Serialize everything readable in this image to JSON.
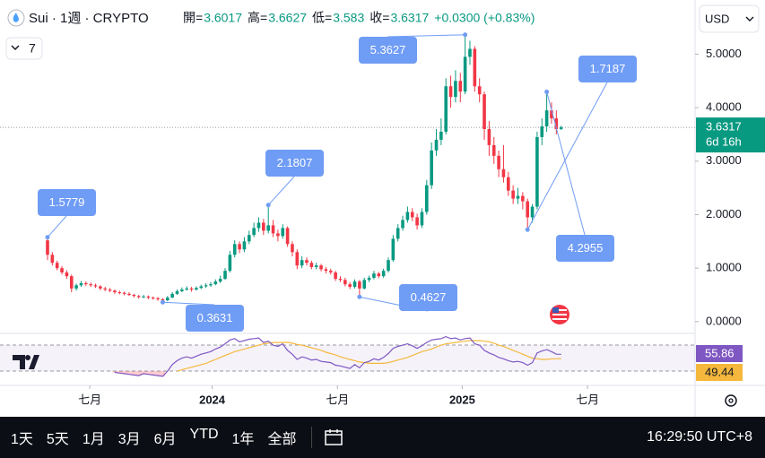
{
  "chart_data": {
    "type": "candlestick",
    "symbol": "Sui · 1週 · CRYPTO",
    "ohlc_labels": [
      "開=",
      "高=",
      "低=",
      "收="
    ],
    "change": "+0.0300 (+0.83%)",
    "indicator_count": "7",
    "currency": "USD",
    "countdown": "6d 16h",
    "up_color": "#089981",
    "down_color": "#f23645",
    "annotation_color": "#6f9cf5",
    "ylim": [
      -0.22,
      5.51
    ],
    "yticks": [
      {
        "value": 0,
        "label": "0.0000"
      },
      {
        "value": 1,
        "label": "1.0000"
      },
      {
        "value": 2,
        "label": "2.0000"
      },
      {
        "value": 3,
        "label": "3.0000"
      },
      {
        "value": 4,
        "label": "4.0000"
      },
      {
        "value": 5,
        "label": "5.0000"
      }
    ],
    "grid": false,
    "xlim": [
      -9.9,
      134.9
    ],
    "xticks": [
      {
        "value": 8.8,
        "label": "七月"
      },
      {
        "value": 34.3,
        "label": "2024"
      },
      {
        "value": 60.4,
        "label": "七月"
      },
      {
        "value": 86.4,
        "label": "2025"
      },
      {
        "value": 112.5,
        "label": "七月"
      }
    ],
    "candles": [
      [
        1.52,
        1.5779,
        1.15,
        1.25
      ],
      [
        1.25,
        1.3,
        1.05,
        1.1
      ],
      [
        1.1,
        1.14,
        0.96,
        1.0
      ],
      [
        1.0,
        1.04,
        0.88,
        0.92
      ],
      [
        0.92,
        0.96,
        0.8,
        0.85
      ],
      [
        0.85,
        0.88,
        0.55,
        0.62
      ],
      [
        0.62,
        0.71,
        0.58,
        0.68
      ],
      [
        0.68,
        0.76,
        0.65,
        0.72
      ],
      [
        0.72,
        0.75,
        0.67,
        0.7
      ],
      [
        0.7,
        0.73,
        0.65,
        0.68
      ],
      [
        0.68,
        0.71,
        0.63,
        0.66
      ],
      [
        0.66,
        0.68,
        0.59,
        0.62
      ],
      [
        0.62,
        0.65,
        0.57,
        0.6
      ],
      [
        0.6,
        0.63,
        0.55,
        0.58
      ],
      [
        0.58,
        0.6,
        0.52,
        0.55
      ],
      [
        0.55,
        0.58,
        0.51,
        0.54
      ],
      [
        0.54,
        0.56,
        0.49,
        0.52
      ],
      [
        0.52,
        0.55,
        0.48,
        0.5
      ],
      [
        0.5,
        0.52,
        0.45,
        0.48
      ],
      [
        0.48,
        0.5,
        0.43,
        0.46
      ],
      [
        0.46,
        0.5,
        0.44,
        0.47
      ],
      [
        0.47,
        0.49,
        0.42,
        0.45
      ],
      [
        0.45,
        0.47,
        0.41,
        0.44
      ],
      [
        0.44,
        0.46,
        0.39,
        0.42
      ],
      [
        0.42,
        0.44,
        0.3631,
        0.4
      ],
      [
        0.4,
        0.48,
        0.38,
        0.45
      ],
      [
        0.45,
        0.55,
        0.44,
        0.52
      ],
      [
        0.52,
        0.6,
        0.5,
        0.57
      ],
      [
        0.57,
        0.64,
        0.55,
        0.6
      ],
      [
        0.6,
        0.66,
        0.58,
        0.62
      ],
      [
        0.62,
        0.65,
        0.56,
        0.6
      ],
      [
        0.6,
        0.66,
        0.58,
        0.63
      ],
      [
        0.63,
        0.69,
        0.61,
        0.66
      ],
      [
        0.66,
        0.72,
        0.63,
        0.68
      ],
      [
        0.68,
        0.74,
        0.65,
        0.7
      ],
      [
        0.7,
        0.79,
        0.68,
        0.75
      ],
      [
        0.75,
        0.86,
        0.72,
        0.8
      ],
      [
        0.8,
        1.0,
        0.78,
        0.95
      ],
      [
        0.95,
        1.32,
        0.92,
        1.25
      ],
      [
        1.25,
        1.52,
        1.2,
        1.45
      ],
      [
        1.45,
        1.5,
        1.28,
        1.35
      ],
      [
        1.35,
        1.58,
        1.3,
        1.5
      ],
      [
        1.5,
        1.7,
        1.45,
        1.62
      ],
      [
        1.62,
        1.85,
        1.58,
        1.75
      ],
      [
        1.75,
        1.95,
        1.68,
        1.85
      ],
      [
        1.85,
        1.92,
        1.62,
        1.7
      ],
      [
        1.7,
        2.1807,
        1.65,
        1.8
      ],
      [
        1.8,
        1.9,
        1.58,
        1.65
      ],
      [
        1.65,
        1.72,
        1.5,
        1.6
      ],
      [
        1.6,
        1.82,
        1.55,
        1.75
      ],
      [
        1.75,
        1.78,
        1.4,
        1.45
      ],
      [
        1.45,
        1.5,
        1.22,
        1.3
      ],
      [
        1.3,
        1.35,
        0.98,
        1.05
      ],
      [
        1.05,
        1.22,
        1.0,
        1.15
      ],
      [
        1.15,
        1.2,
        1.05,
        1.1
      ],
      [
        1.1,
        1.14,
        0.98,
        1.02
      ],
      [
        1.02,
        1.1,
        0.98,
        1.05
      ],
      [
        1.05,
        1.08,
        0.94,
        0.98
      ],
      [
        0.98,
        1.02,
        0.9,
        0.95
      ],
      [
        0.95,
        0.99,
        0.88,
        0.92
      ],
      [
        0.92,
        0.95,
        0.76,
        0.8
      ],
      [
        0.8,
        0.85,
        0.74,
        0.78
      ],
      [
        0.78,
        0.82,
        0.66,
        0.7
      ],
      [
        0.7,
        0.74,
        0.61,
        0.65
      ],
      [
        0.65,
        0.79,
        0.62,
        0.75
      ],
      [
        0.75,
        0.78,
        0.4627,
        0.62
      ],
      [
        0.62,
        0.82,
        0.6,
        0.78
      ],
      [
        0.78,
        0.86,
        0.74,
        0.82
      ],
      [
        0.82,
        0.95,
        0.79,
        0.9
      ],
      [
        0.9,
        0.93,
        0.81,
        0.85
      ],
      [
        0.85,
        0.99,
        0.82,
        0.95
      ],
      [
        0.95,
        1.2,
        0.92,
        1.15
      ],
      [
        1.15,
        1.62,
        1.12,
        1.55
      ],
      [
        1.55,
        1.82,
        1.5,
        1.75
      ],
      [
        1.75,
        1.98,
        1.7,
        1.9
      ],
      [
        1.9,
        2.15,
        1.85,
        2.05
      ],
      [
        2.05,
        2.12,
        1.88,
        1.95
      ],
      [
        1.95,
        2.02,
        1.72,
        1.8
      ],
      [
        1.8,
        2.12,
        1.75,
        2.05
      ],
      [
        2.05,
        2.65,
        2.0,
        2.55
      ],
      [
        2.55,
        3.35,
        2.48,
        3.2
      ],
      [
        3.2,
        3.6,
        3.1,
        3.4
      ],
      [
        3.4,
        3.8,
        3.3,
        3.55
      ],
      [
        3.55,
        4.55,
        3.5,
        4.4
      ],
      [
        4.4,
        4.6,
        4.0,
        4.2
      ],
      [
        4.2,
        4.7,
        4.1,
        4.5
      ],
      [
        4.5,
        4.65,
        4.1,
        4.3
      ],
      [
        4.3,
        5.3627,
        4.25,
        4.95
      ],
      [
        4.95,
        5.25,
        4.8,
        5.1
      ],
      [
        5.1,
        5.15,
        4.3,
        4.4
      ],
      [
        4.4,
        4.55,
        4.1,
        4.25
      ],
      [
        4.25,
        4.3,
        3.4,
        3.6
      ],
      [
        3.6,
        3.75,
        3.1,
        3.3
      ],
      [
        3.3,
        3.45,
        2.95,
        3.1
      ],
      [
        3.1,
        3.2,
        2.7,
        2.85
      ],
      [
        2.85,
        3.3,
        2.6,
        2.7
      ],
      [
        2.7,
        2.8,
        2.35,
        2.45
      ],
      [
        2.45,
        2.55,
        2.2,
        2.3
      ],
      [
        2.3,
        2.5,
        2.2,
        2.35
      ],
      [
        2.35,
        2.42,
        2.1,
        2.25
      ],
      [
        2.25,
        2.3,
        1.7187,
        1.95
      ],
      [
        1.95,
        2.2,
        1.85,
        2.15
      ],
      [
        2.15,
        3.55,
        2.1,
        3.45
      ],
      [
        3.45,
        3.8,
        3.3,
        3.65
      ],
      [
        3.65,
        4.2955,
        3.55,
        3.95
      ],
      [
        3.95,
        4.1,
        3.7,
        3.8
      ],
      [
        3.8,
        3.95,
        3.5,
        3.6
      ],
      [
        3.6017,
        3.6627,
        3.583,
        3.6317
      ]
    ],
    "rsi": {
      "ylim": [
        8,
        88
      ],
      "bands": [
        70,
        30
      ],
      "color": "#7e57c2",
      "ma_color": "#f5b83d",
      "values": [
        null,
        null,
        null,
        null,
        null,
        null,
        null,
        null,
        null,
        null,
        null,
        null,
        null,
        null,
        28,
        27,
        26,
        25,
        24,
        23,
        26,
        25,
        24,
        23,
        22,
        30,
        40,
        46,
        50,
        52,
        50,
        53,
        56,
        58,
        60,
        64,
        67,
        72,
        78,
        80,
        75,
        77,
        79,
        80,
        81,
        74,
        76,
        70,
        68,
        72,
        62,
        56,
        48,
        52,
        50,
        47,
        48,
        45,
        44,
        43,
        39,
        38,
        36,
        34,
        40,
        35,
        43,
        45,
        49,
        47,
        51,
        57,
        65,
        68,
        70,
        72,
        69,
        65,
        69,
        74,
        78,
        79,
        80,
        83,
        80,
        81,
        78,
        80,
        81,
        72,
        70,
        62,
        58,
        55,
        51,
        49,
        46,
        44,
        45,
        43,
        39,
        43,
        58,
        61,
        63,
        60,
        56,
        55.86
      ],
      "ma_values": [
        null,
        null,
        null,
        null,
        null,
        null,
        null,
        null,
        null,
        null,
        null,
        null,
        null,
        null,
        null,
        null,
        null,
        null,
        null,
        null,
        null,
        null,
        null,
        null,
        null,
        null,
        null,
        30,
        32,
        34,
        36,
        38,
        40,
        42,
        45,
        48,
        51,
        54,
        57,
        60,
        62,
        64,
        66,
        68,
        70,
        72,
        73,
        74,
        74,
        74,
        74,
        73,
        71,
        70,
        68,
        66,
        64,
        62,
        59,
        57,
        55,
        52,
        50,
        48,
        46,
        44,
        43,
        42,
        42,
        42,
        42,
        43,
        45,
        47,
        49,
        51,
        54,
        57,
        60,
        62,
        64,
        67,
        70,
        72,
        73,
        74,
        75,
        76,
        77,
        77,
        77,
        76,
        75,
        73,
        70,
        68,
        65,
        62,
        59,
        56,
        53,
        50,
        49,
        48,
        48,
        49,
        49,
        49.44
      ]
    },
    "annotations": [
      {
        "candle": 0,
        "at": "high"
      },
      {
        "candle": 24,
        "at": "low"
      },
      {
        "candle": 46,
        "at": "high"
      },
      {
        "candle": 65,
        "at": "low"
      },
      {
        "candle": 87,
        "at": "high"
      },
      {
        "candle": 100,
        "at": "low"
      },
      {
        "candle": 104,
        "at": "high"
      }
    ],
    "range_buttons": [
      "1天",
      "5天",
      "1月",
      "3月",
      "6月",
      "YTD",
      "1年",
      "全部"
    ],
    "clock": "16:29:50 UTC+8"
  }
}
